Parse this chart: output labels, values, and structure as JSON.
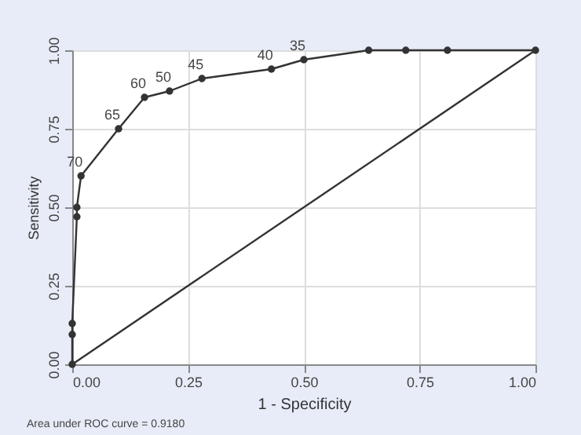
{
  "chart_data": {
    "type": "line",
    "xlabel": "1 - Specificity",
    "ylabel": "Sensitivity",
    "series": [
      {
        "color": "#333333",
        "marker": "circle",
        "x": [
          0,
          0,
          0,
          0.01,
          0.01,
          0.019,
          0.1,
          0.156,
          0.21,
          0.28,
          0.43,
          0.5,
          0.64,
          0.72,
          0.81,
          1.0
        ],
        "values": [
          0,
          0.095,
          0.13,
          0.47,
          0.5,
          0.6,
          0.75,
          0.85,
          0.87,
          0.91,
          0.94,
          0.97,
          1.0,
          1.0,
          1.0,
          1.0
        ]
      },
      {
        "color": "#333333",
        "marker": "none",
        "x": [
          0,
          1
        ],
        "values": [
          0,
          1
        ]
      }
    ],
    "annotations": [
      {
        "text": "70",
        "x": 0.019,
        "y": 0.6
      },
      {
        "text": "65",
        "x": 0.1,
        "y": 0.75
      },
      {
        "text": "60",
        "x": 0.156,
        "y": 0.85
      },
      {
        "text": "50",
        "x": 0.21,
        "y": 0.87
      },
      {
        "text": "45",
        "x": 0.28,
        "y": 0.91
      },
      {
        "text": "40",
        "x": 0.43,
        "y": 0.94
      },
      {
        "text": "35",
        "x": 0.5,
        "y": 0.97
      },
      "Area under ROC curve = 0.9180"
    ],
    "xlim": [
      0,
      1
    ],
    "ylim": [
      0,
      1
    ],
    "xticks": [
      {
        "value": 0,
        "label": "0.00"
      },
      {
        "value": 0.25,
        "label": "0.25"
      },
      {
        "value": 0.5,
        "label": "0.50"
      },
      {
        "value": 0.75,
        "label": "0.75"
      },
      {
        "value": 1,
        "label": "1.00"
      }
    ],
    "yticks": [
      {
        "value": 0,
        "label": "0.00"
      },
      {
        "value": 0.25,
        "label": "0.25"
      },
      {
        "value": 0.5,
        "label": "0.50"
      },
      {
        "value": 0.75,
        "label": "0.75"
      },
      {
        "value": 1,
        "label": "1.00"
      }
    ],
    "grid": true
  }
}
